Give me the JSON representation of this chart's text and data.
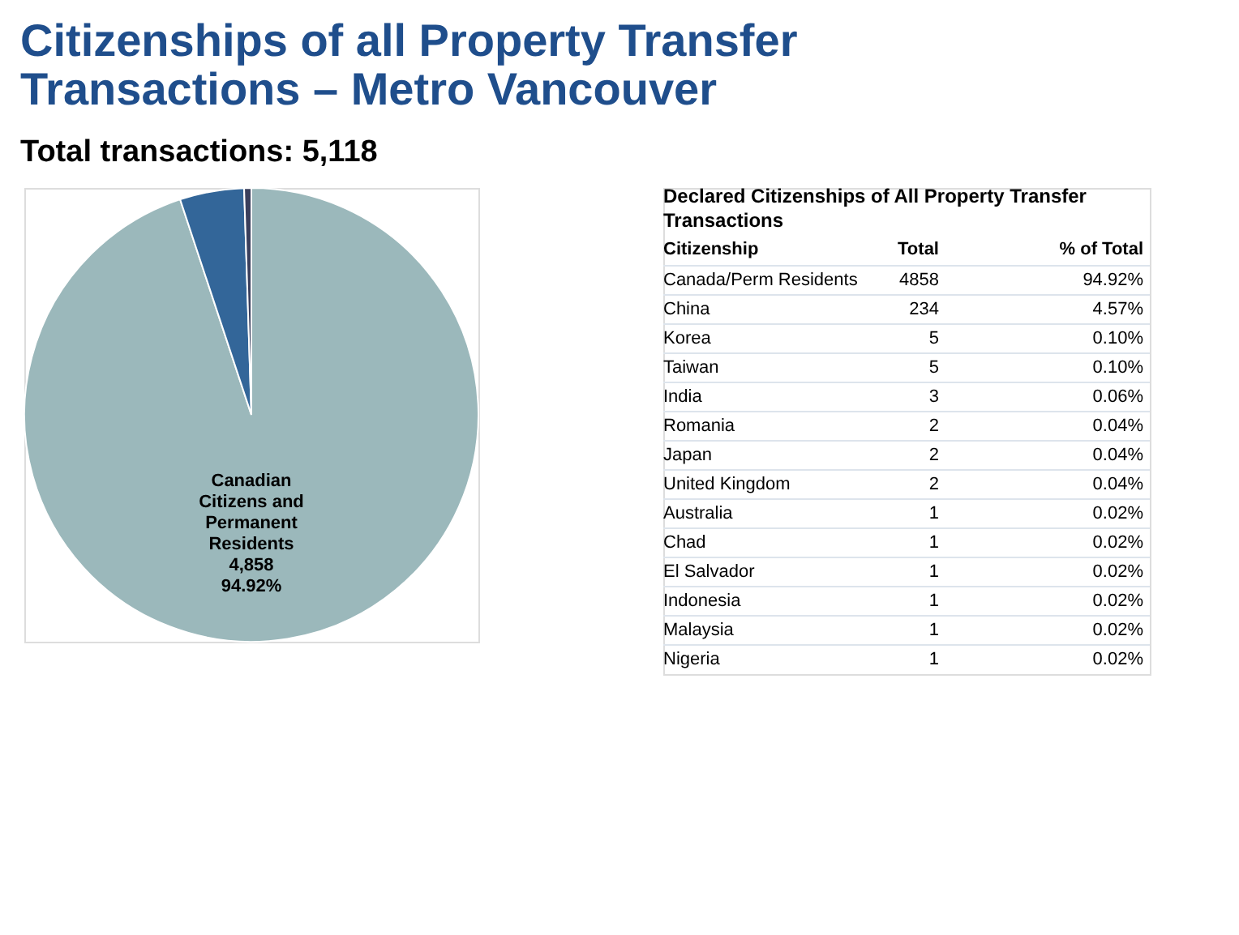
{
  "chart_data": [
    {
      "type": "pie",
      "title": "Citizenships of all Property Transfer Transactions – Metro Vancouver",
      "subtitle": "Total transactions: 5,118",
      "categories": [
        "Canadian Citizens and Permanent Residents",
        null,
        null
      ],
      "values": [
        94.92,
        4.57,
        0.51
      ],
      "value_labels": [
        "4,858 94.92%",
        null,
        null
      ],
      "colors": [
        "#9bb8bb",
        "#336699",
        "#3a3f5c"
      ],
      "legend": false
    },
    {
      "type": "other",
      "title": "Declared Citizenships of All Property Transfer Transactions",
      "categories": [
        "Canada/Perm Residents",
        "China",
        "Korea",
        "Taiwan",
        "India",
        "Romania",
        "Japan",
        "United Kingdom",
        "Australia",
        "Chad",
        "El Salvador",
        "Indonesia",
        "Malaysia",
        "Nigeria"
      ],
      "series": [
        {
          "name": "Total",
          "values": [
            4858,
            234,
            5,
            5,
            3,
            2,
            2,
            2,
            1,
            1,
            1,
            1,
            1,
            1
          ]
        },
        {
          "name": "% of Total",
          "values": [
            94.92,
            4.57,
            0.1,
            0.1,
            0.06,
            0.04,
            0.04,
            0.04,
            0.02,
            0.02,
            0.02,
            0.02,
            0.02,
            0.02
          ],
          "value_labels": [
            "94.92%",
            "4.57%",
            "0.10%",
            "0.10%",
            "0.06%",
            "0.04%",
            "0.04%",
            "0.04%",
            "0.02%",
            "0.02%",
            "0.02%",
            "0.02%",
            "0.02%",
            "0.02%"
          ]
        }
      ],
      "data_labels": true,
      "annotations": [
        "Citizenship"
      ]
    }
  ]
}
